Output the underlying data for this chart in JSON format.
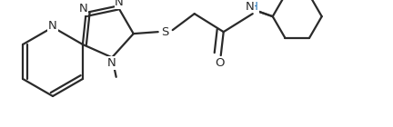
{
  "bg_color": "#ffffff",
  "line_color": "#2a2a2a",
  "line_width": 1.6,
  "figsize": [
    4.32,
    1.4
  ],
  "dpi": 100,
  "xlim": [
    0,
    432
  ],
  "ylim": [
    0,
    140
  ]
}
